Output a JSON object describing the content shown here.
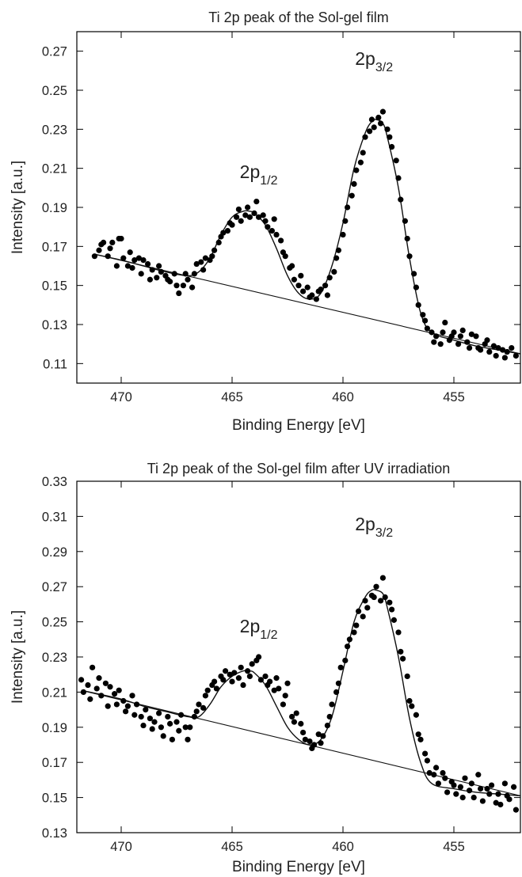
{
  "chart_data": [
    {
      "type": "scatter",
      "title": "Ti 2p peak of the Sol-gel film",
      "xlabel": "Binding Energy [eV]",
      "ylabel": "Intensity [a.u.]",
      "xlim": [
        472,
        452
      ],
      "ylim": [
        0.1,
        0.28
      ],
      "x_ticks": [
        470,
        465,
        460,
        455
      ],
      "y_ticks": [
        0.11,
        0.13,
        0.15,
        0.17,
        0.19,
        0.21,
        0.23,
        0.25,
        0.27
      ],
      "x_reversed": true,
      "grid": false,
      "annotations": [
        {
          "base": "2p",
          "sub": "1/2",
          "x": 463.8,
          "y": 0.205
        },
        {
          "base": "2p",
          "sub": "3/2",
          "x": 458.6,
          "y": 0.263
        }
      ],
      "series": [
        {
          "kind": "fit",
          "x": [
            471.2,
            470,
            469,
            468,
            467,
            466.5,
            466,
            465.5,
            465,
            464.5,
            464.2,
            464,
            463.5,
            463,
            462.5,
            462,
            461.5,
            461,
            460.5,
            460,
            459.5,
            459,
            458.7,
            458.5,
            458.2,
            458,
            457.5,
            457,
            456.5,
            456,
            455,
            454,
            453,
            452
          ],
          "y": [
            0.166,
            0.163,
            0.16,
            0.157,
            0.155,
            0.157,
            0.164,
            0.176,
            0.185,
            0.188,
            0.188,
            0.187,
            0.181,
            0.169,
            0.155,
            0.146,
            0.143,
            0.146,
            0.16,
            0.182,
            0.21,
            0.228,
            0.234,
            0.235,
            0.233,
            0.226,
            0.2,
            0.164,
            0.136,
            0.126,
            0.122,
            0.119,
            0.117,
            0.115
          ]
        },
        {
          "kind": "background",
          "x": [
            471.2,
            452
          ],
          "y": [
            0.166,
            0.115
          ]
        },
        {
          "kind": "data",
          "x": [
            471.2,
            471.0,
            470.9,
            470.8,
            470.6,
            470.5,
            470.4,
            470.2,
            470.1,
            470.0,
            469.9,
            469.7,
            469.6,
            469.5,
            469.4,
            469.2,
            469.1,
            469.0,
            468.8,
            468.7,
            468.6,
            468.4,
            468.3,
            468.2,
            468.0,
            467.9,
            467.8,
            467.6,
            467.5,
            467.4,
            467.2,
            467.1,
            467.0,
            466.8,
            466.7,
            466.6,
            466.4,
            466.3,
            466.2,
            466.0,
            465.9,
            465.8,
            465.6,
            465.5,
            465.4,
            465.2,
            465.1,
            465.0,
            464.8,
            464.7,
            464.6,
            464.4,
            464.3,
            464.2,
            464.0,
            463.9,
            463.8,
            463.6,
            463.5,
            463.4,
            463.2,
            463.1,
            463.0,
            462.8,
            462.7,
            462.6,
            462.4,
            462.3,
            462.2,
            462.0,
            461.9,
            461.8,
            461.6,
            461.5,
            461.4,
            461.2,
            461.1,
            461.0,
            460.8,
            460.7,
            460.6,
            460.4,
            460.3,
            460.2,
            460.0,
            459.9,
            459.8,
            459.6,
            459.5,
            459.4,
            459.2,
            459.1,
            459.0,
            458.8,
            458.7,
            458.6,
            458.4,
            458.3,
            458.2,
            458.0,
            457.9,
            457.8,
            457.6,
            457.5,
            457.4,
            457.2,
            457.1,
            457.0,
            456.8,
            456.7,
            456.6,
            456.4,
            456.3,
            456.2,
            456.0,
            455.9,
            455.8,
            455.6,
            455.5,
            455.4,
            455.2,
            455.1,
            455.0,
            454.8,
            454.7,
            454.6,
            454.4,
            454.3,
            454.2,
            454.0,
            453.9,
            453.8,
            453.6,
            453.5,
            453.4,
            453.2,
            453.1,
            453.0,
            452.8,
            452.7,
            452.6,
            452.4,
            452.2
          ],
          "y": [
            0.165,
            0.168,
            0.171,
            0.172,
            0.165,
            0.169,
            0.172,
            0.16,
            0.174,
            0.174,
            0.164,
            0.16,
            0.167,
            0.159,
            0.163,
            0.164,
            0.156,
            0.163,
            0.161,
            0.153,
            0.158,
            0.154,
            0.16,
            0.157,
            0.155,
            0.153,
            0.152,
            0.156,
            0.15,
            0.146,
            0.15,
            0.156,
            0.153,
            0.149,
            0.156,
            0.161,
            0.162,
            0.158,
            0.164,
            0.163,
            0.165,
            0.168,
            0.172,
            0.175,
            0.177,
            0.178,
            0.182,
            0.181,
            0.185,
            0.189,
            0.183,
            0.186,
            0.19,
            0.185,
            0.187,
            0.193,
            0.185,
            0.186,
            0.183,
            0.18,
            0.178,
            0.184,
            0.176,
            0.173,
            0.167,
            0.165,
            0.159,
            0.16,
            0.153,
            0.15,
            0.155,
            0.147,
            0.149,
            0.144,
            0.145,
            0.143,
            0.147,
            0.148,
            0.15,
            0.145,
            0.154,
            0.157,
            0.164,
            0.168,
            0.176,
            0.183,
            0.19,
            0.196,
            0.202,
            0.209,
            0.213,
            0.218,
            0.226,
            0.229,
            0.235,
            0.231,
            0.236,
            0.233,
            0.239,
            0.23,
            0.226,
            0.221,
            0.214,
            0.205,
            0.194,
            0.183,
            0.174,
            0.165,
            0.156,
            0.149,
            0.14,
            0.135,
            0.132,
            0.128,
            0.126,
            0.121,
            0.124,
            0.12,
            0.126,
            0.131,
            0.122,
            0.124,
            0.126,
            0.12,
            0.124,
            0.127,
            0.121,
            0.118,
            0.125,
            0.124,
            0.118,
            0.117,
            0.12,
            0.122,
            0.116,
            0.119,
            0.114,
            0.118,
            0.117,
            0.113,
            0.116,
            0.118,
            0.114
          ]
        }
      ]
    },
    {
      "type": "scatter",
      "title": "Ti 2p peak of the Sol-gel film after UV irradiation",
      "xlabel": "Binding Energy [eV]",
      "ylabel": "Intensity [a.u.]",
      "xlim": [
        472,
        452
      ],
      "ylim": [
        0.13,
        0.33
      ],
      "x_ticks": [
        470,
        465,
        460,
        455
      ],
      "y_ticks": [
        0.13,
        0.15,
        0.17,
        0.19,
        0.21,
        0.23,
        0.25,
        0.27,
        0.29,
        0.31,
        0.33
      ],
      "x_reversed": true,
      "grid": false,
      "annotations": [
        {
          "base": "2p",
          "sub": "1/2",
          "x": 463.8,
          "y": 0.244
        },
        {
          "base": "2p",
          "sub": "3/2",
          "x": 458.6,
          "y": 0.302
        }
      ],
      "series": [
        {
          "kind": "fit",
          "x": [
            471.8,
            470,
            469,
            468,
            467,
            466.5,
            466,
            465.5,
            465,
            464.5,
            464.2,
            464,
            463.5,
            463,
            462.5,
            462,
            461.5,
            461,
            460.5,
            460,
            459.5,
            459,
            458.7,
            458.5,
            458.2,
            458,
            457.5,
            457,
            456.5,
            456,
            455,
            454,
            453,
            452
          ],
          "y": [
            0.211,
            0.206,
            0.202,
            0.199,
            0.196,
            0.196,
            0.203,
            0.213,
            0.219,
            0.222,
            0.222,
            0.221,
            0.214,
            0.202,
            0.19,
            0.183,
            0.18,
            0.183,
            0.196,
            0.222,
            0.25,
            0.264,
            0.268,
            0.268,
            0.266,
            0.258,
            0.23,
            0.195,
            0.17,
            0.158,
            0.155,
            0.153,
            0.152,
            0.151
          ]
        },
        {
          "kind": "background",
          "x": [
            471.8,
            452
          ],
          "y": [
            0.211,
            0.151
          ]
        },
        {
          "kind": "data",
          "x": [
            471.8,
            471.7,
            471.5,
            471.4,
            471.3,
            471.1,
            471.0,
            470.9,
            470.7,
            470.6,
            470.5,
            470.3,
            470.2,
            470.1,
            469.9,
            469.8,
            469.7,
            469.5,
            469.4,
            469.3,
            469.1,
            469.0,
            468.9,
            468.7,
            468.6,
            468.5,
            468.3,
            468.2,
            468.1,
            467.9,
            467.8,
            467.7,
            467.5,
            467.4,
            467.3,
            467.1,
            467.0,
            466.9,
            466.7,
            466.6,
            466.5,
            466.3,
            466.2,
            466.1,
            465.9,
            465.8,
            465.7,
            465.5,
            465.4,
            465.3,
            465.1,
            465.0,
            464.9,
            464.7,
            464.6,
            464.5,
            464.3,
            464.2,
            464.1,
            463.9,
            463.8,
            463.7,
            463.5,
            463.4,
            463.3,
            463.1,
            463.0,
            462.9,
            462.7,
            462.6,
            462.5,
            462.3,
            462.2,
            462.1,
            461.9,
            461.8,
            461.7,
            461.5,
            461.4,
            461.3,
            461.1,
            461.0,
            460.9,
            460.7,
            460.6,
            460.5,
            460.3,
            460.2,
            460.1,
            459.9,
            459.8,
            459.7,
            459.5,
            459.4,
            459.3,
            459.1,
            459.0,
            458.9,
            458.7,
            458.6,
            458.5,
            458.3,
            458.2,
            458.1,
            457.9,
            457.8,
            457.7,
            457.5,
            457.4,
            457.3,
            457.1,
            457.0,
            456.9,
            456.7,
            456.6,
            456.5,
            456.3,
            456.2,
            456.1,
            455.9,
            455.8,
            455.7,
            455.5,
            455.4,
            455.3,
            455.1,
            455.0,
            454.9,
            454.7,
            454.6,
            454.5,
            454.3,
            454.2,
            454.1,
            453.9,
            453.8,
            453.7,
            453.5,
            453.4,
            453.3,
            453.1,
            453.0,
            452.9,
            452.7,
            452.6,
            452.5,
            452.3,
            452.2
          ],
          "y": [
            0.217,
            0.21,
            0.214,
            0.206,
            0.224,
            0.212,
            0.218,
            0.208,
            0.215,
            0.202,
            0.213,
            0.209,
            0.203,
            0.211,
            0.205,
            0.199,
            0.202,
            0.208,
            0.197,
            0.203,
            0.196,
            0.191,
            0.2,
            0.195,
            0.189,
            0.193,
            0.198,
            0.19,
            0.185,
            0.196,
            0.192,
            0.183,
            0.193,
            0.188,
            0.197,
            0.19,
            0.183,
            0.19,
            0.196,
            0.199,
            0.203,
            0.201,
            0.208,
            0.211,
            0.214,
            0.216,
            0.212,
            0.219,
            0.217,
            0.222,
            0.22,
            0.216,
            0.221,
            0.218,
            0.224,
            0.214,
            0.222,
            0.219,
            0.226,
            0.228,
            0.23,
            0.217,
            0.219,
            0.214,
            0.216,
            0.211,
            0.218,
            0.212,
            0.203,
            0.208,
            0.215,
            0.196,
            0.193,
            0.198,
            0.192,
            0.187,
            0.183,
            0.182,
            0.178,
            0.18,
            0.186,
            0.181,
            0.185,
            0.191,
            0.196,
            0.203,
            0.21,
            0.215,
            0.224,
            0.228,
            0.236,
            0.24,
            0.244,
            0.248,
            0.256,
            0.253,
            0.262,
            0.258,
            0.265,
            0.264,
            0.27,
            0.262,
            0.275,
            0.264,
            0.261,
            0.257,
            0.251,
            0.244,
            0.233,
            0.229,
            0.219,
            0.205,
            0.202,
            0.197,
            0.186,
            0.183,
            0.175,
            0.171,
            0.164,
            0.163,
            0.167,
            0.158,
            0.164,
            0.161,
            0.153,
            0.159,
            0.157,
            0.152,
            0.156,
            0.15,
            0.161,
            0.154,
            0.158,
            0.15,
            0.163,
            0.155,
            0.148,
            0.155,
            0.152,
            0.157,
            0.147,
            0.152,
            0.146,
            0.158,
            0.151,
            0.149,
            0.156,
            0.143
          ]
        }
      ]
    }
  ]
}
